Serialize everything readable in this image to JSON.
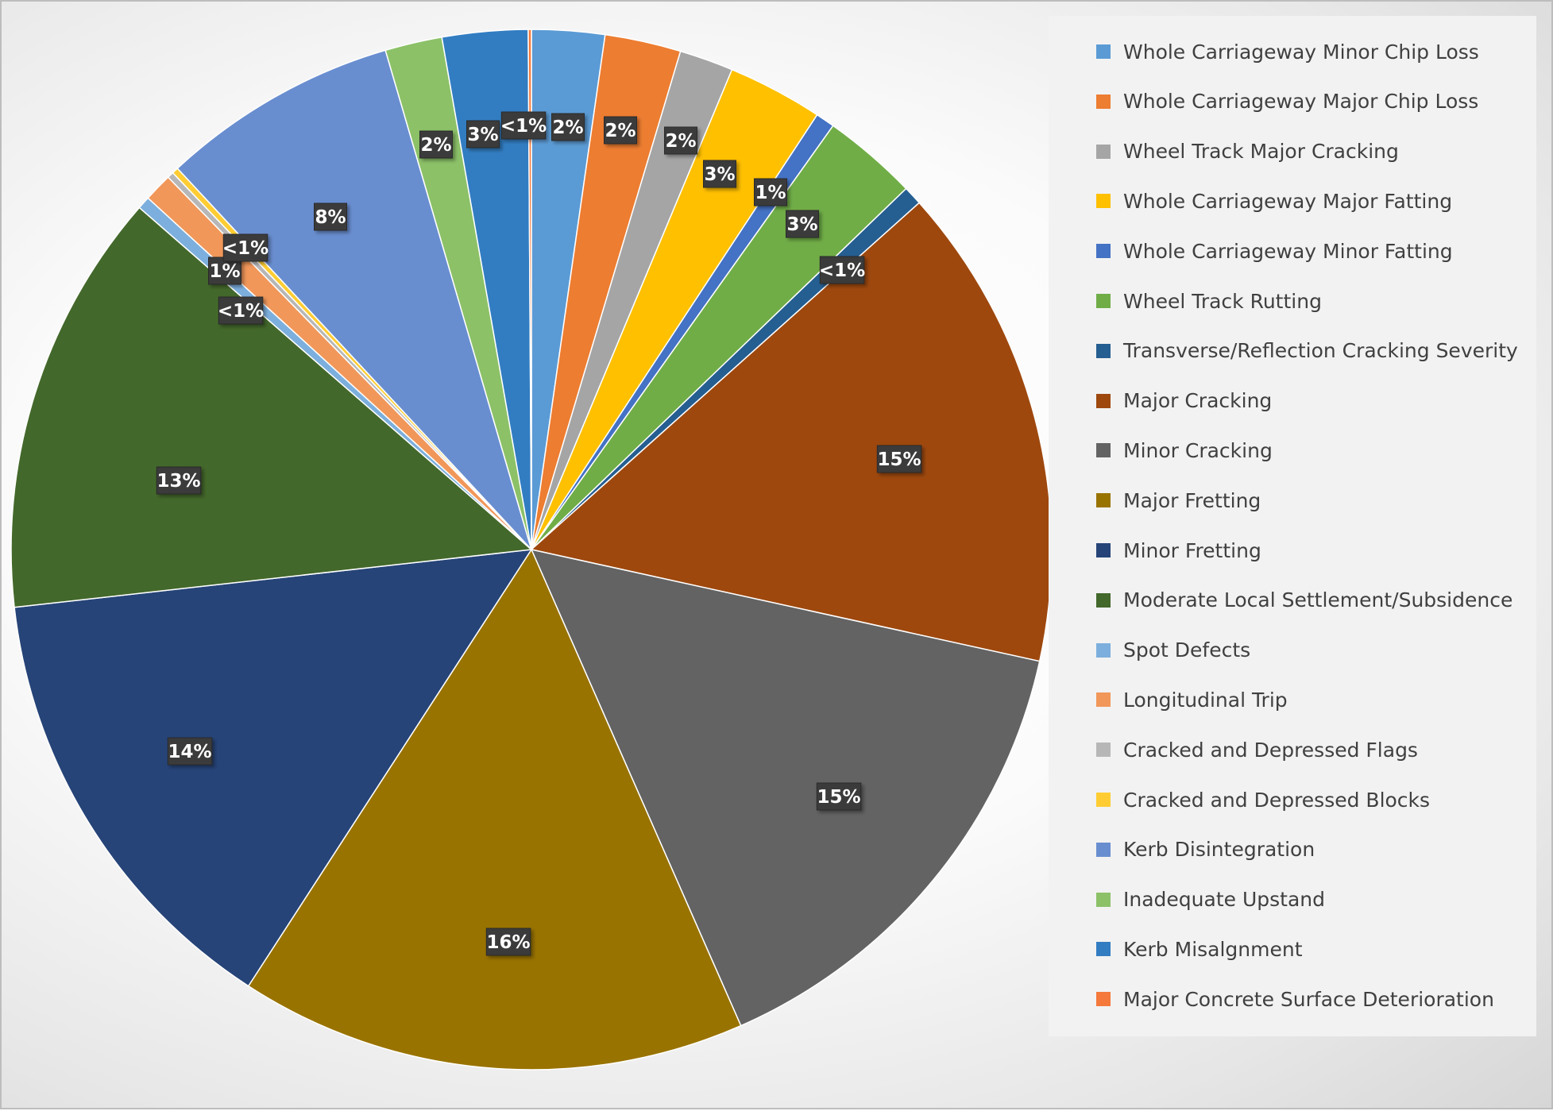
{
  "chart_data": {
    "type": "pie",
    "title": "",
    "legend_position": "right",
    "slices": [
      {
        "label": "Whole Carriageway Minor Chip Loss",
        "value": 2.3,
        "display": "2%",
        "color": "#5b9bd5"
      },
      {
        "label": "Whole Carriageway Major Chip Loss",
        "value": 2.4,
        "display": "2%",
        "color": "#ed7d31"
      },
      {
        "label": "Wheel Track Major Cracking",
        "value": 1.7,
        "display": "2%",
        "color": "#a5a5a5"
      },
      {
        "label": "Whole Carriageway Major Fatting",
        "value": 3.0,
        "display": "3%",
        "color": "#ffc000"
      },
      {
        "label": "Whole Carriageway Minor Fatting",
        "value": 0.6,
        "display": "1%",
        "color": "#4472c4"
      },
      {
        "label": "Wheel Track Rutting",
        "value": 3.0,
        "display": "3%",
        "color": "#70ad47"
      },
      {
        "label": "Transverse/Reflection Cracking Severity",
        "value": 0.6,
        "display": "<1%",
        "color": "#255e91"
      },
      {
        "label": "Major Cracking",
        "value": 15.3,
        "display": "15%",
        "color": "#9e480e"
      },
      {
        "label": "Minor Cracking",
        "value": 15.2,
        "display": "15%",
        "color": "#636363"
      },
      {
        "label": "Major Fretting",
        "value": 16.0,
        "display": "16%",
        "color": "#997300"
      },
      {
        "label": "Minor Fretting",
        "value": 14.3,
        "display": "14%",
        "color": "#264478"
      },
      {
        "label": "Moderate Local Settlement/Subsidence",
        "value": 13.4,
        "display": "13%",
        "color": "#43682b"
      },
      {
        "label": "Spot Defects",
        "value": 0.4,
        "display": "<1%",
        "color": "#7cafdd"
      },
      {
        "label": "Longitudinal Trip",
        "value": 0.9,
        "display": "1%",
        "color": "#f1975a"
      },
      {
        "label": "Cracked and Depressed Flags",
        "value": 0.2,
        "display": "<1%",
        "color": "#b7b7b7"
      },
      {
        "label": "Cracked and Depressed Blocks",
        "value": 0.2,
        "display": "<1%",
        "color": "#ffcd33"
      },
      {
        "label": "Kerb Disintegration",
        "value": 7.5,
        "display": "8%",
        "color": "#698ed0"
      },
      {
        "label": "Inadequate Upstand",
        "value": 1.8,
        "display": "2%",
        "color": "#8cc168"
      },
      {
        "label": "Kerb Misalgnment",
        "value": 2.7,
        "display": "3%",
        "color": "#327dc2"
      },
      {
        "label": "Major Concrete Surface Deterioration",
        "value": 0.1,
        "display": "<1%",
        "color": "#f4793b"
      }
    ]
  }
}
